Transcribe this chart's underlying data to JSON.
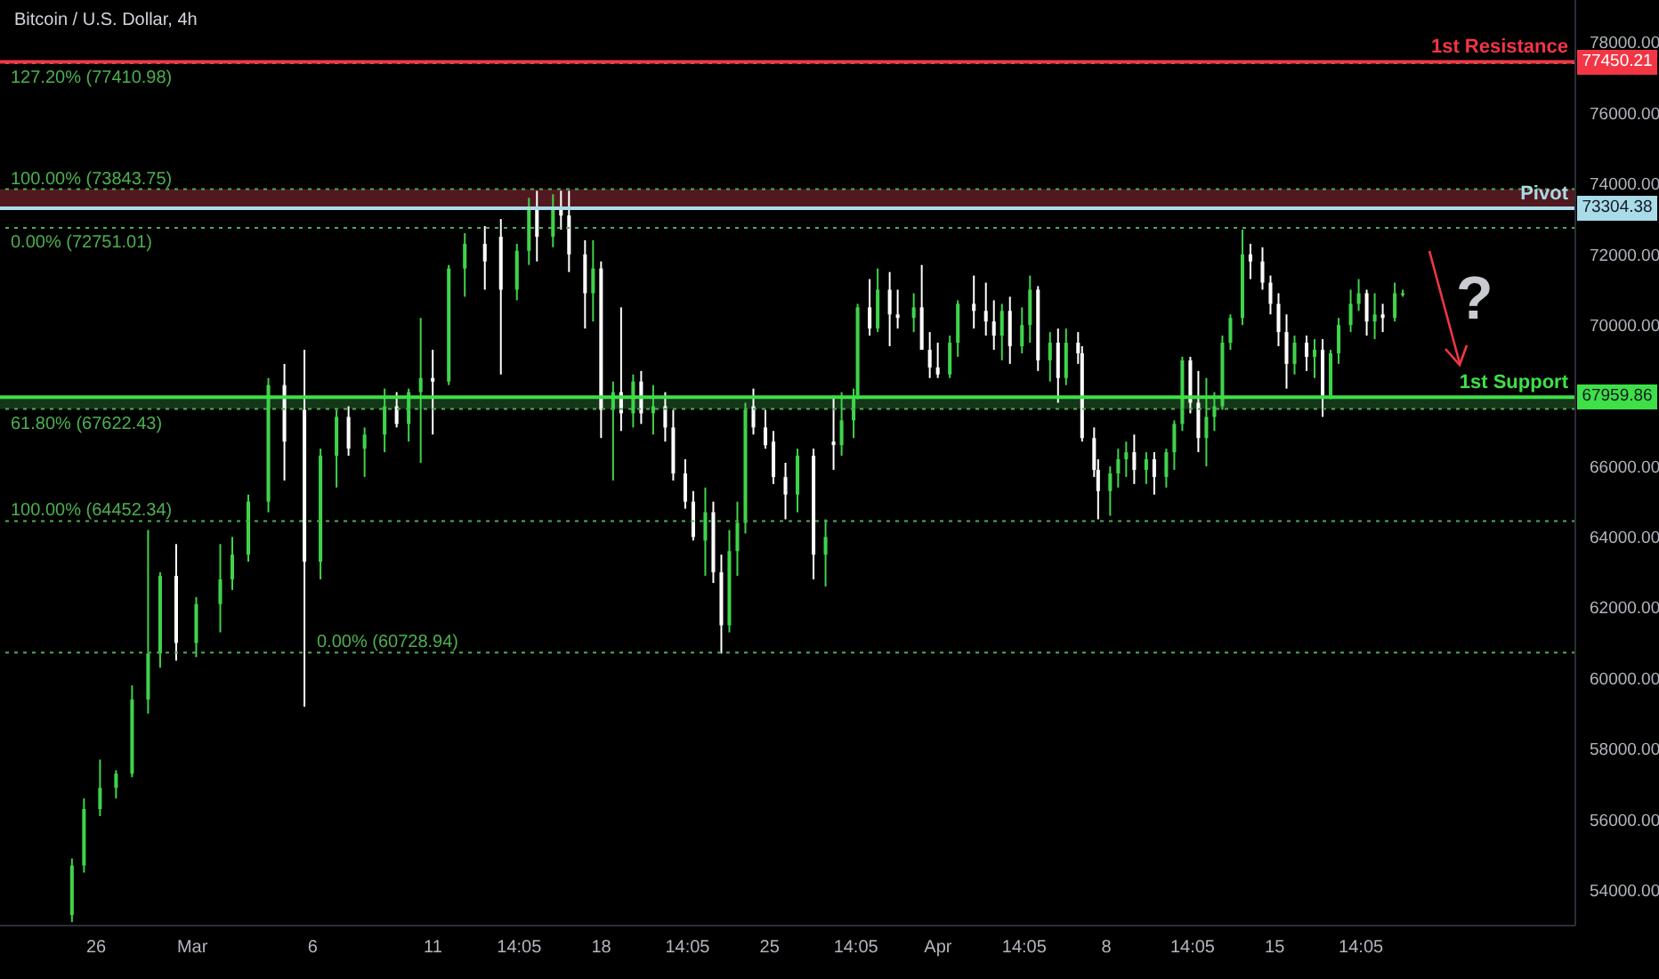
{
  "chart_data": {
    "type": "candlestick",
    "title": "Bitcoin / U.S. Dollar, 4h",
    "x": [
      "--02-25T00:00",
      "--02-25T12:00",
      "--02-26T04:00",
      "--02-26T20:00",
      "--02-27T12:00",
      "--02-28T04:00",
      "--02-28T16:00",
      "--02-29T08:00",
      "--03-01T04:00",
      "--03-02T04:00",
      "--03-02T16:00",
      "--03-03T08:00",
      "--03-04T04:00",
      "--03-04T20:00",
      "--03-05T16:00",
      "--03-06T08:00",
      "--03-07T00:00",
      "--03-07T12:00",
      "--03-08T04:00",
      "--03-09T00:00",
      "--03-09T12:00",
      "--03-10T00:00",
      "--03-10T12:00",
      "--03-11T00:00",
      "--03-11T16:00",
      "--03-12T08:00",
      "--03-13T04:00",
      "--03-13T20:00",
      "--03-14T12:00",
      "--03-15T00:00",
      "--03-15T08:00",
      "--03-16T00:00",
      "--03-16T08:00",
      "--03-16T16:00",
      "--03-17T08:00",
      "--03-17T16:00",
      "--03-18T00:00",
      "--03-18T12:00",
      "--03-18T20:00",
      "--03-19T08:00",
      "--03-19T16:00",
      "--03-20T04:00",
      "--03-20T16:00",
      "--03-21T00:00",
      "--03-21T12:00",
      "--03-21T20:00",
      "--03-22T08:00",
      "--03-22T16:00",
      "--03-23T00:00",
      "--03-23T08:00",
      "--03-23T16:00",
      "--03-24T00:00",
      "--03-24T08:00",
      "--03-24T20:00",
      "--03-25T04:00",
      "--03-25T16:00",
      "--03-26T04:00",
      "--03-26T20:00",
      "--03-27T08:00",
      "--03-27T16:00",
      "--03-28T00:00",
      "--03-28T12:00",
      "--03-28T16:00",
      "--03-29T04:00",
      "--03-29T12:00",
      "--03-30T00:00",
      "--03-30T08:00",
      "--03-31T00:00",
      "--03-31T08:00",
      "--03-31T16:00",
      "--04-01T00:00",
      "--04-01T12:00",
      "--04-01T20:00",
      "--04-02T12:00",
      "--04-03T00:00",
      "--04-03T08:00",
      "--04-03T16:00",
      "--04-04T00:00",
      "--04-04T12:00",
      "--04-04T20:00",
      "--04-05T04:00",
      "--04-05T16:00",
      "--04-06T00:00",
      "--04-06T08:00",
      "--04-06T20:00",
      "--04-07T00:00",
      "--04-07T12:00",
      "--04-07T16:00",
      "--04-08T04:00",
      "--04-08T12:00",
      "--04-08T20:00",
      "--04-09T04:00",
      "--04-09T16:00",
      "--04-10T00:00",
      "--04-10T12:00",
      "--04-10T20:00",
      "--04-11T04:00",
      "--04-11T12:00",
      "--04-11T20:00",
      "--04-12T04:00",
      "--04-12T12:00",
      "--04-12T20:00",
      "--04-13T04:00",
      "--04-13T16:00",
      "--04-14T00:00",
      "--04-14T12:00",
      "--04-14T20:00",
      "--04-15T04:00",
      "--04-15T12:00",
      "--04-15T20:00",
      "--04-16T08:00",
      "--04-16T16:00",
      "--04-17T00:00",
      "--04-17T08:00",
      "--04-17T16:00",
      "--04-18T04:00",
      "--04-18T12:00",
      "--04-18T20:00",
      "--04-19T04:00",
      "--04-19T12:00",
      "--04-20T00:00",
      "--04-20T08:00"
    ],
    "ohlc": [
      [
        53300,
        54900,
        53100,
        54700
      ],
      [
        54700,
        56600,
        54500,
        56300
      ],
      [
        56300,
        57700,
        56100,
        56900
      ],
      [
        56900,
        57400,
        56600,
        57300
      ],
      [
        57300,
        59800,
        57200,
        59400
      ],
      [
        59400,
        64200,
        59000,
        60700
      ],
      [
        60700,
        63000,
        60300,
        62900
      ],
      [
        62900,
        63800,
        60500,
        61000
      ],
      [
        61000,
        62300,
        60600,
        62100
      ],
      [
        62100,
        63800,
        61300,
        62800
      ],
      [
        62800,
        64000,
        62500,
        63500
      ],
      [
        63500,
        65200,
        63300,
        65000
      ],
      [
        65000,
        68500,
        64700,
        68300
      ],
      [
        68300,
        68900,
        65600,
        66700
      ],
      [
        67600,
        69300,
        59200,
        63300
      ],
      [
        63300,
        66500,
        62800,
        66300
      ],
      [
        66300,
        67600,
        65400,
        67400
      ],
      [
        67400,
        67700,
        66300,
        66500
      ],
      [
        66500,
        67100,
        65700,
        66900
      ],
      [
        66900,
        68200,
        66400,
        67700
      ],
      [
        67700,
        68100,
        67100,
        67200
      ],
      [
        67200,
        68200,
        66700,
        68100
      ],
      [
        68100,
        70200,
        66100,
        68500
      ],
      [
        68500,
        69300,
        66900,
        68400
      ],
      [
        68400,
        71700,
        68300,
        71600
      ],
      [
        71600,
        72600,
        70800,
        72300
      ],
      [
        72300,
        72800,
        71000,
        71800
      ],
      [
        72500,
        73000,
        68600,
        71000
      ],
      [
        71000,
        72300,
        70700,
        72100
      ],
      [
        72100,
        73600,
        71700,
        73300
      ],
      [
        73300,
        73800,
        71800,
        72500
      ],
      [
        72500,
        73700,
        72200,
        73300
      ],
      [
        73300,
        73800,
        72700,
        73100
      ],
      [
        73100,
        73800,
        71500,
        72000
      ],
      [
        72000,
        72400,
        69900,
        70900
      ],
      [
        70900,
        72400,
        70100,
        71600
      ],
      [
        71600,
        71800,
        66800,
        67600
      ],
      [
        67600,
        68400,
        65600,
        68100
      ],
      [
        68100,
        70500,
        67000,
        67500
      ],
      [
        67500,
        68600,
        67100,
        68400
      ],
      [
        68400,
        68700,
        67200,
        67500
      ],
      [
        67500,
        68300,
        66900,
        67700
      ],
      [
        67700,
        68100,
        66700,
        67100
      ],
      [
        67100,
        67600,
        65600,
        65800
      ],
      [
        65800,
        66200,
        64800,
        65000
      ],
      [
        65000,
        65300,
        63900,
        64000
      ],
      [
        63900,
        65400,
        62900,
        64700
      ],
      [
        64700,
        65000,
        62700,
        63000
      ],
      [
        63000,
        63500,
        60700,
        61500
      ],
      [
        61500,
        64200,
        61300,
        63600
      ],
      [
        63600,
        65000,
        62900,
        64400
      ],
      [
        64400,
        67800,
        64100,
        67600
      ],
      [
        67700,
        68200,
        66900,
        67100
      ],
      [
        67100,
        67600,
        66500,
        66600
      ],
      [
        66700,
        67000,
        65500,
        65700
      ],
      [
        65700,
        66100,
        64500,
        65200
      ],
      [
        65200,
        66500,
        64700,
        66300
      ],
      [
        66300,
        66500,
        62800,
        63500
      ],
      [
        63500,
        64500,
        62600,
        64000
      ],
      [
        66700,
        68000,
        65900,
        66600
      ],
      [
        66600,
        68100,
        66300,
        67300
      ],
      [
        67300,
        68200,
        66800,
        68000
      ],
      [
        68000,
        70600,
        67900,
        70500
      ],
      [
        70500,
        71300,
        69700,
        69900
      ],
      [
        69900,
        71600,
        69800,
        71000
      ],
      [
        71000,
        71500,
        69400,
        70300
      ],
      [
        70300,
        71000,
        69900,
        70200
      ],
      [
        70200,
        70900,
        69800,
        70500
      ],
      [
        70500,
        71700,
        69300,
        69300
      ],
      [
        69300,
        69800,
        68500,
        68800
      ],
      [
        68800,
        69500,
        68500,
        68600
      ],
      [
        68600,
        69700,
        68500,
        69500
      ],
      [
        69500,
        70700,
        69100,
        70600
      ],
      [
        70600,
        71400,
        69900,
        70400
      ],
      [
        70400,
        71200,
        69700,
        70100
      ],
      [
        70100,
        70700,
        69300,
        69700
      ],
      [
        69700,
        70600,
        69000,
        70400
      ],
      [
        70400,
        70800,
        68900,
        69400
      ],
      [
        69400,
        70500,
        69200,
        70000
      ],
      [
        70000,
        71400,
        69500,
        71000
      ],
      [
        71000,
        71100,
        68700,
        69000
      ],
      [
        69000,
        69800,
        68400,
        69500
      ],
      [
        69500,
        69900,
        67800,
        68500
      ],
      [
        68500,
        69900,
        68300,
        69500
      ],
      [
        69500,
        69800,
        68900,
        69200
      ],
      [
        69200,
        69400,
        66700,
        66800
      ],
      [
        66800,
        67100,
        65700,
        65900
      ],
      [
        65900,
        66200,
        64500,
        65300
      ],
      [
        65300,
        66000,
        64600,
        65800
      ],
      [
        65800,
        66500,
        65400,
        66200
      ],
      [
        66200,
        66700,
        65700,
        66400
      ],
      [
        66400,
        66900,
        65500,
        65900
      ],
      [
        65900,
        66400,
        65500,
        66200
      ],
      [
        66200,
        66400,
        65200,
        65700
      ],
      [
        65700,
        66500,
        65400,
        66400
      ],
      [
        66400,
        67300,
        65900,
        67200
      ],
      [
        67200,
        69100,
        67000,
        69000
      ],
      [
        69000,
        69100,
        67500,
        67800
      ],
      [
        67800,
        68700,
        66400,
        66800
      ],
      [
        66800,
        68500,
        66000,
        67400
      ],
      [
        67400,
        68100,
        67000,
        67700
      ],
      [
        67700,
        69700,
        67600,
        69500
      ],
      [
        69500,
        70300,
        69300,
        70200
      ],
      [
        70200,
        72700,
        70000,
        72000
      ],
      [
        72000,
        72300,
        71300,
        71800
      ],
      [
        71800,
        72200,
        71000,
        71200
      ],
      [
        71200,
        71400,
        70300,
        70600
      ],
      [
        70600,
        70900,
        69400,
        69800
      ],
      [
        69800,
        70300,
        68200,
        68900
      ],
      [
        68900,
        69700,
        68600,
        69500
      ],
      [
        69500,
        69700,
        68700,
        69100
      ],
      [
        69100,
        69600,
        68500,
        69300
      ],
      [
        69300,
        69600,
        67400,
        68000
      ],
      [
        68000,
        69300,
        67900,
        69200
      ],
      [
        69200,
        70200,
        68900,
        70000
      ],
      [
        70000,
        71000,
        69800,
        70600
      ],
      [
        70600,
        71300,
        70400,
        70900
      ],
      [
        70900,
        71000,
        69700,
        70100
      ],
      [
        70100,
        70900,
        69600,
        70300
      ],
      [
        70300,
        70600,
        69800,
        70200
      ],
      [
        70200,
        71200,
        70100,
        70900
      ],
      [
        70900,
        71000,
        70800,
        70900
      ]
    ],
    "colors": [
      "#3fd34b",
      "#3fd34b",
      "#3fd34b",
      "#3fd34b",
      "#3fd34b",
      "#3fd34b",
      "#3fd34b",
      "#ffffff",
      "#3fd34b",
      "#3fd34b",
      "#3fd34b",
      "#3fd34b",
      "#3fd34b",
      "#ffffff",
      "#ffffff",
      "#3fd34b",
      "#3fd34b",
      "#ffffff",
      "#3fd34b",
      "#3fd34b",
      "#ffffff",
      "#3fd34b",
      "#3fd34b",
      "#ffffff",
      "#3fd34b",
      "#3fd34b",
      "#ffffff",
      "#ffffff",
      "#3fd34b",
      "#3fd34b",
      "#ffffff",
      "#3fd34b",
      "#ffffff",
      "#ffffff",
      "#ffffff",
      "#3fd34b",
      "#ffffff",
      "#3fd34b",
      "#ffffff",
      "#3fd34b",
      "#ffffff",
      "#3fd34b",
      "#ffffff",
      "#ffffff",
      "#ffffff",
      "#ffffff",
      "#3fd34b",
      "#ffffff",
      "#ffffff",
      "#3fd34b",
      "#3fd34b",
      "#3fd34b",
      "#ffffff",
      "#ffffff",
      "#ffffff",
      "#ffffff",
      "#3fd34b",
      "#ffffff",
      "#3fd34b",
      "#ffffff",
      "#3fd34b",
      "#3fd34b",
      "#3fd34b",
      "#ffffff",
      "#3fd34b",
      "#ffffff",
      "#ffffff",
      "#3fd34b",
      "#ffffff",
      "#ffffff",
      "#ffffff",
      "#3fd34b",
      "#3fd34b",
      "#ffffff",
      "#ffffff",
      "#ffffff",
      "#3fd34b",
      "#ffffff",
      "#3fd34b",
      "#3fd34b",
      "#ffffff",
      "#3fd34b",
      "#ffffff",
      "#3fd34b",
      "#ffffff",
      "#ffffff",
      "#ffffff",
      "#ffffff",
      "#3fd34b",
      "#3fd34b",
      "#3fd34b",
      "#ffffff",
      "#3fd34b",
      "#ffffff",
      "#3fd34b",
      "#3fd34b",
      "#3fd34b",
      "#ffffff",
      "#ffffff",
      "#3fd34b",
      "#3fd34b",
      "#3fd34b",
      "#3fd34b",
      "#3fd34b",
      "#ffffff",
      "#ffffff",
      "#ffffff",
      "#ffffff",
      "#ffffff",
      "#3fd34b",
      "#ffffff",
      "#3fd34b",
      "#ffffff",
      "#3fd34b",
      "#3fd34b",
      "#3fd34b",
      "#3fd34b",
      "#ffffff",
      "#3fd34b",
      "#ffffff",
      "#3fd34b",
      "#3fd34b"
    ],
    "xlim": [
      "--02-22T00:00",
      "--04-27T12:00"
    ],
    "xticks": [
      {
        "value": "--02-26",
        "label": "26"
      },
      {
        "value": "--03-01",
        "label": "Mar"
      },
      {
        "value": "--03-06",
        "label": "6"
      },
      {
        "value": "--03-11",
        "label": "11"
      },
      {
        "value": "--03-14T14:05",
        "label": "14:05"
      },
      {
        "value": "--03-18",
        "label": "18"
      },
      {
        "value": "--03-21T14:05",
        "label": "14:05"
      },
      {
        "value": "--03-25",
        "label": "25"
      },
      {
        "value": "--03-28T14:05",
        "label": "14:05"
      },
      {
        "value": "--04-01",
        "label": "Apr"
      },
      {
        "value": "--04-04T14:05",
        "label": "14:05"
      },
      {
        "value": "--04-08",
        "label": "8"
      },
      {
        "value": "--04-11T14:05",
        "label": "14:05"
      },
      {
        "value": "--04-15",
        "label": "15"
      },
      {
        "value": "--04-18T14:05",
        "label": "14:05"
      }
    ],
    "ylim": [
      53000,
      79200
    ],
    "yticks": [
      {
        "value": 54000,
        "label": "54000.00"
      },
      {
        "value": 56000,
        "label": "56000.00"
      },
      {
        "value": 58000,
        "label": "58000.00"
      },
      {
        "value": 60000,
        "label": "60000.00"
      },
      {
        "value": 62000,
        "label": "62000.00"
      },
      {
        "value": 64000,
        "label": "64000.00"
      },
      {
        "value": 66000,
        "label": "66000.00"
      },
      {
        "value": 68000,
        "label": null
      },
      {
        "value": 70000,
        "label": "70000.00"
      },
      {
        "value": 72000,
        "label": "72000.00"
      },
      {
        "value": 74000,
        "label": "74000.00"
      },
      {
        "value": 76000,
        "label": "76000.00"
      },
      {
        "value": 78000,
        "label": "78000.00"
      }
    ],
    "bands": [
      {
        "axis": "y",
        "from": 73304.38,
        "to": 73843.75,
        "color": "#5a1c22"
      },
      {
        "axis": "y",
        "from": 67622.43,
        "to": 67959.86,
        "color": "#173d1c"
      }
    ],
    "ref_lines": [
      {
        "axis": "y",
        "value": 77410.98,
        "label": "127.20% (77410.98)",
        "color": "#4caf50",
        "line_style": "dotted"
      },
      {
        "axis": "y",
        "value": 77450.21,
        "label": "1st Resistance",
        "color": "#f23645",
        "line_style": "solid"
      },
      {
        "axis": "y",
        "value": 73843.75,
        "label": "100.00% (73843.75)",
        "color": "#4caf50",
        "line_style": "dotted"
      },
      {
        "axis": "y",
        "value": 73304.38,
        "label": "Pivot",
        "color": "#a9dbe8",
        "line_style": "solid"
      },
      {
        "axis": "y",
        "value": 72751.01,
        "label": "0.00% (72751.01)",
        "color": "#4caf50",
        "line_style": "dotted"
      },
      {
        "axis": "y",
        "value": 67959.86,
        "label": "1st Support",
        "color": "#3ee048",
        "line_style": "solid"
      },
      {
        "axis": "y",
        "value": 67622.43,
        "label": "61.80% (67622.43)",
        "color": "#4caf50",
        "line_style": "dotted"
      },
      {
        "axis": "y",
        "value": 64452.34,
        "label": "100.00% (64452.34)",
        "color": "#4caf50",
        "line_style": "dotted"
      },
      {
        "axis": "y",
        "value": 60728.94,
        "label": "0.00% (60728.94)",
        "color": "#4caf50",
        "line_style": "dotted"
      }
    ],
    "annotations": [
      "?",
      "77450.21",
      "73304.38",
      "67959.86"
    ]
  }
}
